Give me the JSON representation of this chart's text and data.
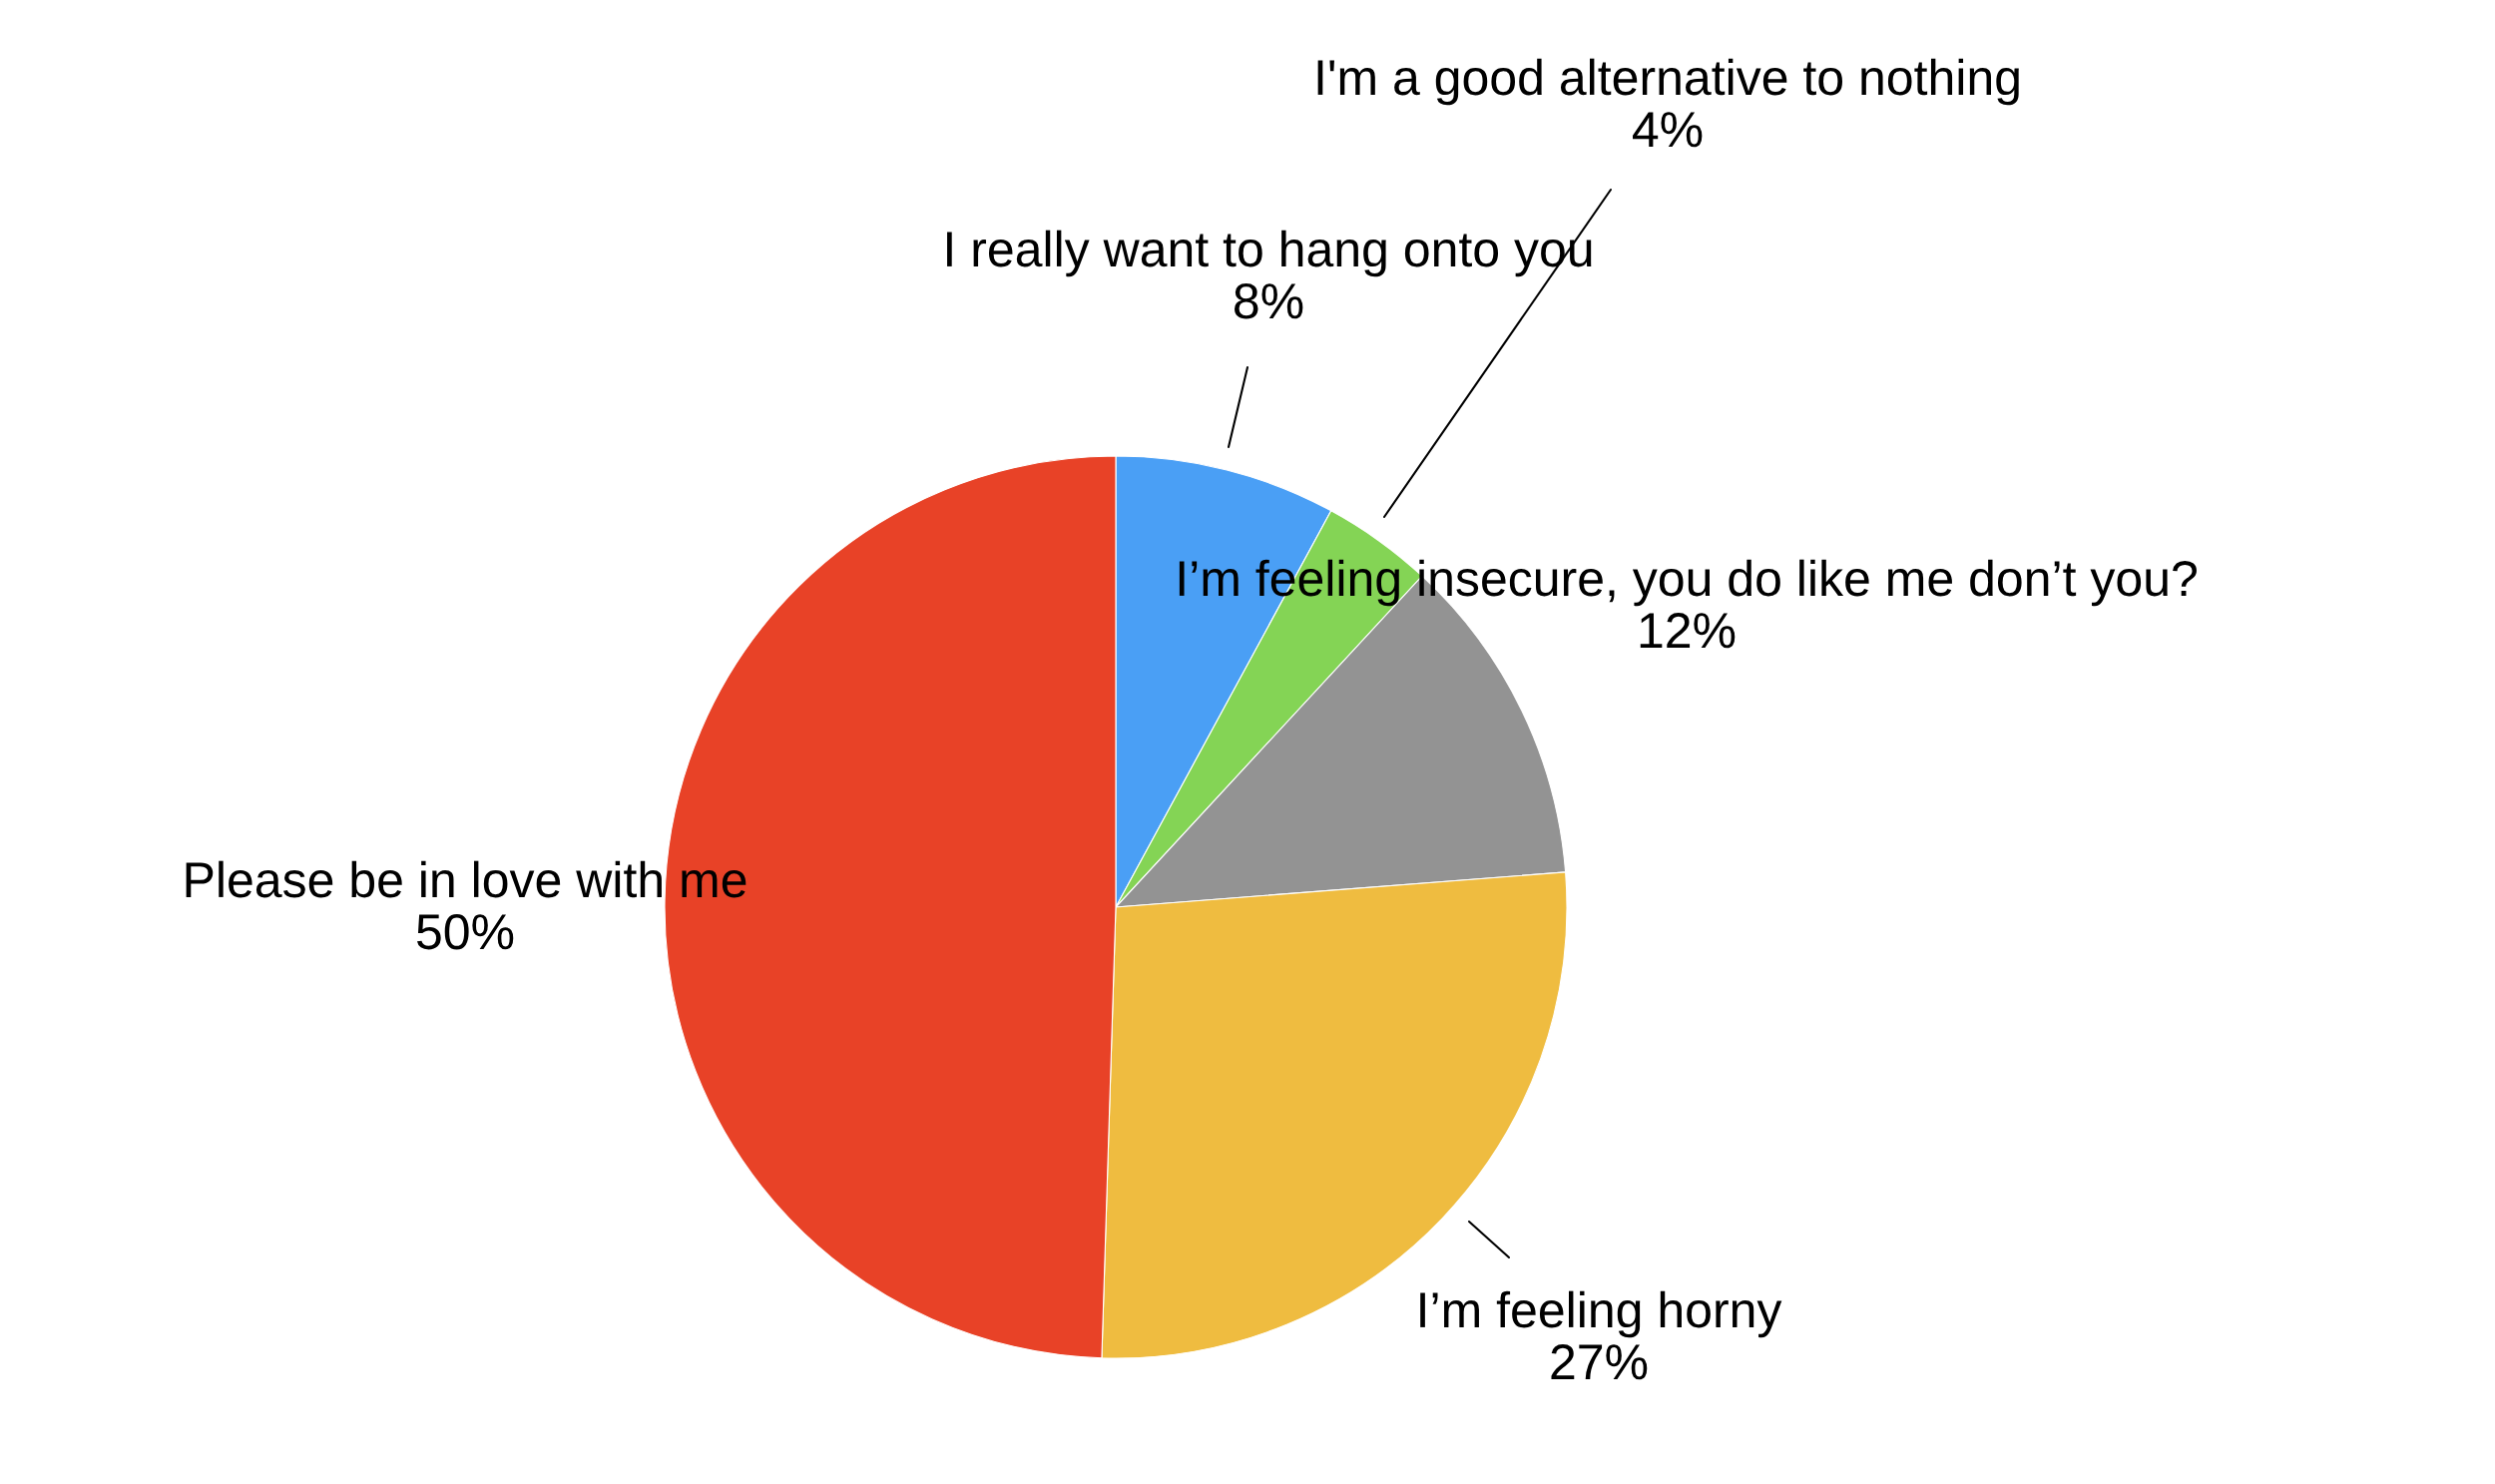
{
  "chart_data": {
    "type": "pie",
    "categories": [
      "I really want to hang onto you",
      "I'm a good alternative to nothing",
      "I’m feeling insecure, you do like me don’t you?",
      "I’m feeling horny",
      "Please be in love with me"
    ],
    "values": [
      8,
      4,
      12,
      27,
      50
    ],
    "value_labels": [
      "8%",
      "4%",
      "12%",
      "27%",
      "50%"
    ],
    "colors": [
      "#4a9ff5",
      "#84d455",
      "#939393",
      "#efbc40",
      "#e84227"
    ],
    "legend": false
  }
}
